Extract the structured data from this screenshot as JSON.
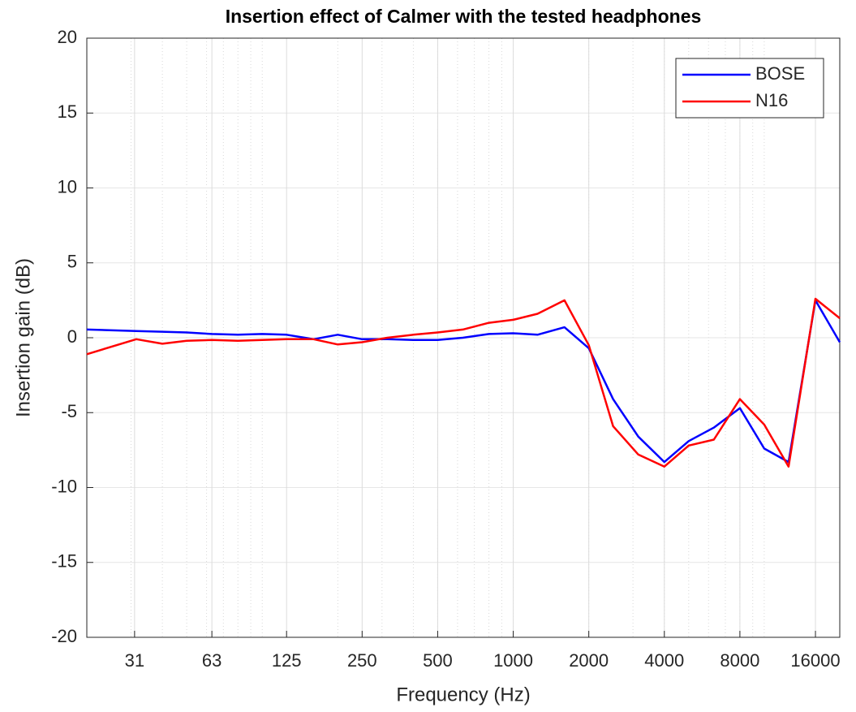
{
  "chart_data": {
    "type": "line",
    "title": "Insertion effect of Calmer with the tested headphones",
    "xlabel": "Frequency (Hz)",
    "ylabel": "Insertion gain (dB)",
    "xscale": "log",
    "x": [
      20,
      31.5,
      40,
      50,
      63,
      80,
      100,
      125,
      160,
      200,
      250,
      315,
      400,
      500,
      630,
      800,
      1000,
      1250,
      1600,
      2000,
      2500,
      3150,
      4000,
      5000,
      6300,
      8000,
      10000,
      12500,
      16000,
      20000
    ],
    "series": [
      {
        "name": "BOSE",
        "color": "#0000ff",
        "values": [
          0.55,
          0.45,
          0.4,
          0.35,
          0.25,
          0.2,
          0.25,
          0.2,
          -0.1,
          0.2,
          -0.1,
          -0.1,
          -0.15,
          -0.15,
          0,
          0.25,
          0.3,
          0.2,
          0.7,
          -0.7,
          -4.1,
          -6.6,
          -8.3,
          -6.9,
          -6,
          -4.7,
          -7.4,
          -8.3,
          2.5,
          -0.3
        ]
      },
      {
        "name": "N16",
        "color": "#ff0000",
        "values": [
          -1.1,
          -0.1,
          -0.4,
          -0.2,
          -0.15,
          -0.2,
          -0.15,
          -0.1,
          -0.1,
          -0.45,
          -0.3,
          0,
          0.2,
          0.35,
          0.55,
          1.0,
          1.2,
          1.6,
          2.5,
          -0.5,
          -5.9,
          -7.8,
          -8.6,
          -7.2,
          -6.8,
          -4.1,
          -5.8,
          -8.6,
          2.6,
          1.3
        ]
      }
    ],
    "xlim": [
      20,
      20000
    ],
    "xticks": [
      31,
      63,
      125,
      250,
      500,
      1000,
      2000,
      4000,
      8000,
      16000
    ],
    "ylim": [
      -20,
      20
    ],
    "yticks": [
      -20,
      -15,
      -10,
      -5,
      0,
      5,
      10,
      15,
      20
    ],
    "grid": true,
    "minor_grid": true,
    "legend": "northeast"
  }
}
